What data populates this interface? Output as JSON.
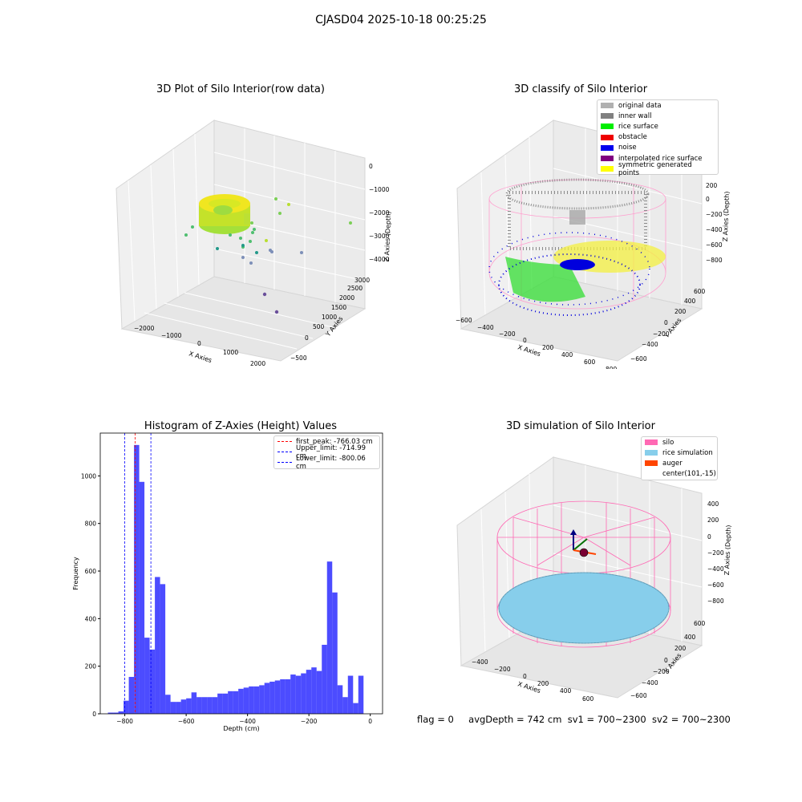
{
  "suptitle": "CJASD04 2025-10-18 00:25:25",
  "footer": {
    "flag": "flag = 0",
    "avg": "avgDepth = 742 cm",
    "sv1": "sv1 = 700~2300",
    "sv2": "sv2 = 700~2300"
  },
  "chart_data": [
    {
      "type": "scatter",
      "projection": "3d",
      "title": "3D Plot of Silo Interior(row data)",
      "xlabel": "X Axies",
      "ylabel": "Y Axies",
      "zlabel": "Z Axies (Depth)",
      "x_ticks": [
        "−2000",
        "−1000",
        "0",
        "1000",
        "2000"
      ],
      "y_ticks": [
        "−500",
        "0",
        "500",
        "1000",
        "1500",
        "2000",
        "2500",
        "3000"
      ],
      "z_ticks": [
        "0",
        "−1000",
        "−2000",
        "−3000",
        "−4000"
      ],
      "colormap": "viridis",
      "description_points": "dense ring of points near depth −2000 to −3000, scattered outliers down to −4500"
    },
    {
      "type": "scatter",
      "projection": "3d",
      "title": "3D classify of Silo Interior",
      "xlabel": "X Axies",
      "ylabel": "Y Axies",
      "zlabel": "Z Axies (Depth)",
      "x_ticks": [
        "−600",
        "−400",
        "−200",
        "0",
        "200",
        "400",
        "600",
        "800"
      ],
      "y_ticks": [
        "−600",
        "−400",
        "−200",
        "0",
        "200",
        "400",
        "600"
      ],
      "z_ticks": [
        "200",
        "0",
        "−200",
        "−400",
        "−600",
        "−800"
      ],
      "legend": [
        {
          "label": "original data",
          "color": "#b0b0b0"
        },
        {
          "label": "inner wall",
          "color": "#808080"
        },
        {
          "label": "rice surface",
          "color": "#00ee00"
        },
        {
          "label": "obstacle",
          "color": "#ee0000"
        },
        {
          "label": "noise",
          "color": "#0000ee"
        },
        {
          "label": "interpolated rice surface",
          "color": "#800080"
        },
        {
          "label": "symmetric generated points",
          "color": "#ffff00"
        }
      ],
      "legend_loc": "upper right"
    },
    {
      "type": "bar",
      "title": "Histogram of Z-Axies (Height) Values",
      "xlabel": "Depth (cm)",
      "ylabel": "Frequency",
      "xlim": [
        -880,
        40
      ],
      "ylim": [
        0,
        1180
      ],
      "x_ticks": [
        -800,
        -600,
        -400,
        -200,
        0
      ],
      "y_ticks": [
        0,
        200,
        400,
        600,
        800,
        1000
      ],
      "bar_color": "#0000ff",
      "bin_start": -855,
      "bin_width": 17,
      "values": [
        5,
        5,
        10,
        55,
        155,
        1130,
        975,
        320,
        270,
        575,
        545,
        80,
        50,
        50,
        60,
        65,
        90,
        70,
        70,
        70,
        70,
        85,
        85,
        95,
        95,
        105,
        110,
        115,
        115,
        120,
        130,
        135,
        140,
        145,
        145,
        165,
        160,
        170,
        185,
        195,
        180,
        290,
        640,
        510,
        120,
        70,
        160,
        45,
        160
      ],
      "vlines": [
        {
          "label": "first_peak: -766.03 cm",
          "x": -766.03,
          "color": "#ff0000"
        },
        {
          "label": "Upper_limit: -714.99 cm",
          "x": -714.99,
          "color": "#0000ff"
        },
        {
          "label": "Lower_limit: -800.06 cm",
          "x": -800.06,
          "color": "#0000ff"
        }
      ],
      "legend_loc": "upper right"
    },
    {
      "type": "surface",
      "projection": "3d",
      "title": "3D simulation of Silo Interior",
      "xlabel": "X Axies",
      "ylabel": "Y Axies",
      "zlabel": "Z Axies (Depth)",
      "x_ticks": [
        "−400",
        "−200",
        "0",
        "200",
        "400",
        "600"
      ],
      "y_ticks": [
        "−600",
        "−400",
        "−200",
        "0",
        "200",
        "400",
        "600"
      ],
      "z_ticks": [
        "400",
        "200",
        "0",
        "−200",
        "−400",
        "−600",
        "−800"
      ],
      "legend": [
        {
          "label": "silo",
          "color": "#ff69b4"
        },
        {
          "label": "rice simulation",
          "color": "#87ceeb"
        },
        {
          "label": "auger",
          "color": "#ff4500"
        },
        {
          "label": "center(101,-15)",
          "color": ""
        }
      ],
      "legend_loc": "upper right"
    }
  ]
}
